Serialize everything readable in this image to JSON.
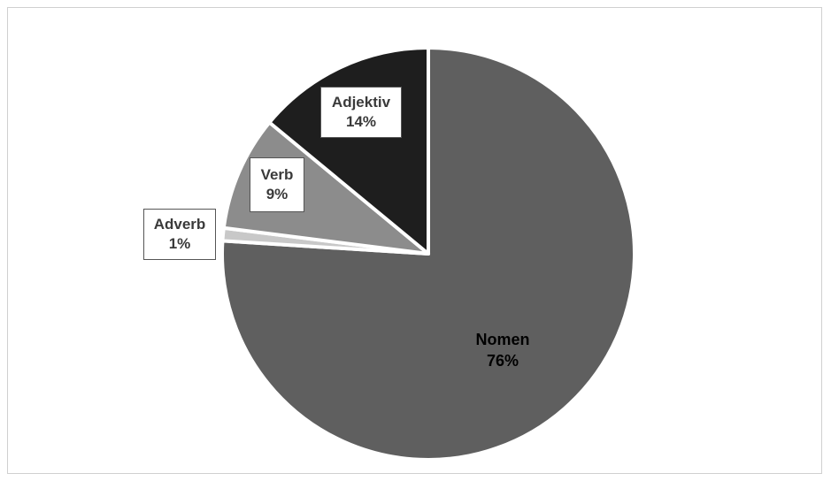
{
  "chart_data": {
    "type": "pie",
    "slices": [
      {
        "label": "Nomen",
        "value": 76,
        "pct_label": "76%",
        "color": "#5f5f5f"
      },
      {
        "label": "Adverb",
        "value": 1,
        "pct_label": "1%",
        "color": "#c8c8c8"
      },
      {
        "label": "Verb",
        "value": 9,
        "pct_label": "9%",
        "color": "#8c8c8c"
      },
      {
        "label": "Adjektiv",
        "value": 14,
        "pct_label": "14%",
        "color": "#1e1e1e"
      }
    ],
    "legend": "none",
    "slice_border_color": "#ffffff"
  }
}
